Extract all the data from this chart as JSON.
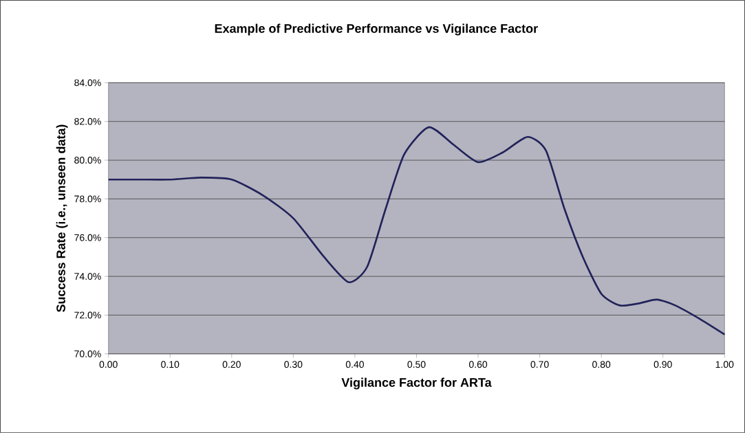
{
  "chart_data": {
    "type": "line",
    "title": "Example of Predictive Performance vs Vigilance Factor",
    "xlabel": "Vigilance Factor for ARTa",
    "ylabel": "Success Rate (i.e., unseen data)",
    "x": [
      0.0,
      0.05,
      0.1,
      0.15,
      0.2,
      0.25,
      0.3,
      0.35,
      0.39,
      0.42,
      0.45,
      0.48,
      0.52,
      0.56,
      0.6,
      0.64,
      0.68,
      0.71,
      0.74,
      0.77,
      0.8,
      0.83,
      0.86,
      0.89,
      0.92,
      0.96,
      1.0
    ],
    "series": [
      {
        "color": "#22225a",
        "values": [
          79.0,
          79.0,
          79.0,
          79.1,
          79.0,
          78.2,
          77.0,
          75.0,
          73.7,
          74.5,
          77.5,
          80.3,
          81.7,
          80.8,
          79.9,
          80.4,
          81.2,
          80.5,
          77.5,
          75.0,
          73.1,
          72.5,
          72.6,
          72.8,
          72.5,
          71.8,
          71.0
        ]
      }
    ],
    "xlim": [
      0,
      1
    ],
    "ylim": [
      70,
      84
    ],
    "xticks": [
      {
        "value": 0,
        "label": "0.00"
      },
      {
        "value": 0.1,
        "label": "0.10"
      },
      {
        "value": 0.2,
        "label": "0.20"
      },
      {
        "value": 0.3,
        "label": "0.30"
      },
      {
        "value": 0.4,
        "label": "0.40"
      },
      {
        "value": 0.5,
        "label": "0.50"
      },
      {
        "value": 0.6,
        "label": "0.60"
      },
      {
        "value": 0.7,
        "label": "0.70"
      },
      {
        "value": 0.8,
        "label": "0.80"
      },
      {
        "value": 0.9,
        "label": "0.90"
      },
      {
        "value": 1,
        "label": "1.00"
      }
    ],
    "yticks": [
      {
        "value": 70,
        "label": "70.0%"
      },
      {
        "value": 72,
        "label": "72.0%"
      },
      {
        "value": 74,
        "label": "74.0%"
      },
      {
        "value": 76,
        "label": "76.0%"
      },
      {
        "value": 78,
        "label": "78.0%"
      },
      {
        "value": 80,
        "label": "80.0%"
      },
      {
        "value": 82,
        "label": "82.0%"
      },
      {
        "value": 84,
        "label": "84.0%"
      }
    ],
    "grid": "y",
    "marker": "none",
    "line_style": "solid"
  }
}
